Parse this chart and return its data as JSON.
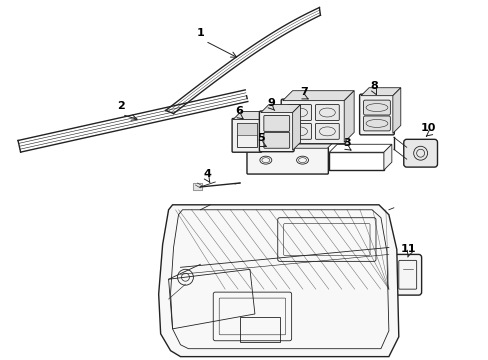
{
  "background_color": "#ffffff",
  "line_color": "#222222",
  "label_color": "#000000",
  "fig_width": 4.89,
  "fig_height": 3.6,
  "dpi": 100
}
